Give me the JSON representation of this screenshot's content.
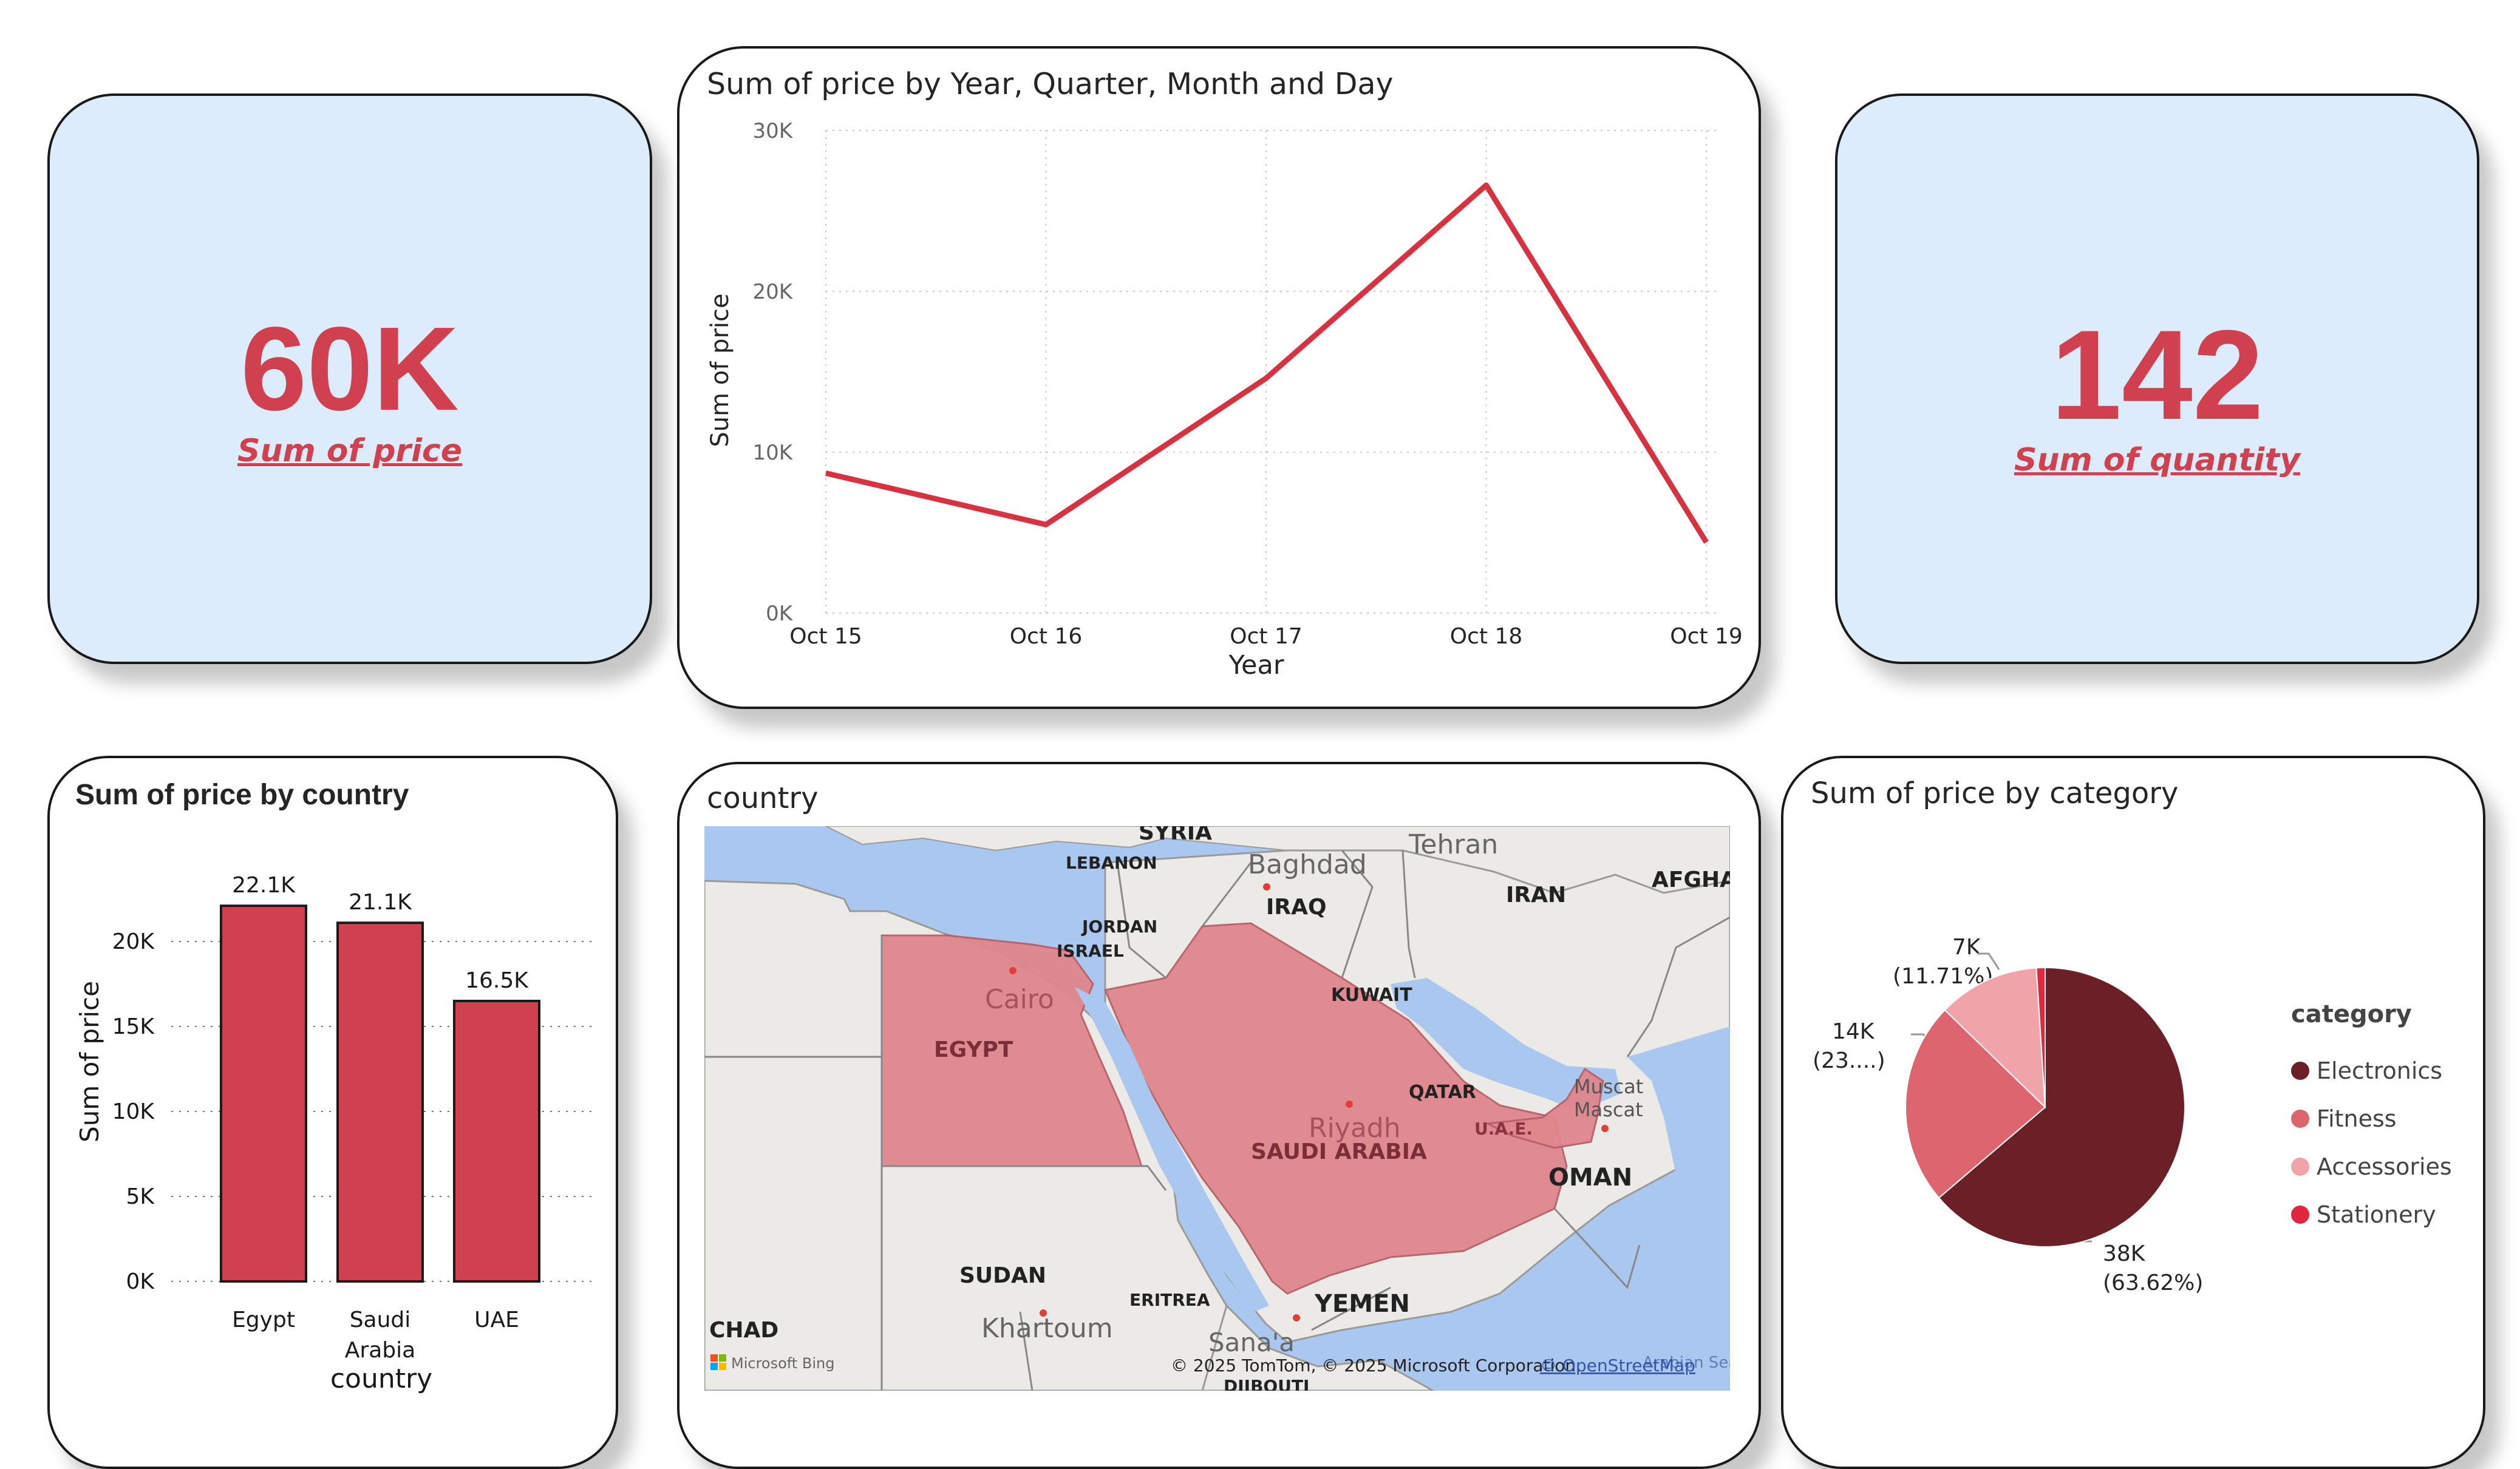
{
  "kpis": {
    "price": {
      "value": "60K",
      "label": "Sum of price"
    },
    "quantity": {
      "value": "142",
      "label": "Sum of quantity"
    }
  },
  "line_chart": {
    "title": "Sum of price by Year, Quarter, Month and Day",
    "xlabel": "Year",
    "ylabel": "Sum of price",
    "x_ticks": [
      "Oct 15",
      "Oct 16",
      "Oct 17",
      "Oct 18",
      "Oct 19"
    ],
    "y_ticks": [
      "0K",
      "10K",
      "20K",
      "30K"
    ]
  },
  "bar_chart": {
    "title": "Sum of price by country",
    "xlabel": "country",
    "ylabel": "Sum of price",
    "y_ticks": [
      "0K",
      "5K",
      "10K",
      "15K",
      "20K"
    ],
    "bars": [
      {
        "label_lines": [
          "Egypt"
        ],
        "data_label": "22.1K"
      },
      {
        "label_lines": [
          "Saudi",
          "Arabia"
        ],
        "data_label": "21.1K"
      },
      {
        "label_lines": [
          "UAE"
        ],
        "data_label": "16.5K"
      }
    ]
  },
  "map": {
    "title": "country",
    "credit": "© 2025 TomTom, © 2025 Microsoft Corporation,",
    "credit_link": "© OpenStreetMap",
    "bing_logo": "Microsoft Bing",
    "country_labels": [
      "SYRIA",
      "LEBANON",
      "JORDAN",
      "ISRAEL",
      "IRAQ",
      "IRAN",
      "AFGHA",
      "KUWAIT",
      "QATAR",
      "U.A.E.",
      "OMAN",
      "EGYPT",
      "SAUDI ARABIA",
      "SUDAN",
      "ERITREA",
      "YEMEN",
      "CHAD",
      "DJIBOUTI"
    ],
    "city_labels": [
      "Baghdad",
      "Tehran",
      "Cairo",
      "Riyadh",
      "Muscat",
      "Mascat",
      "Khartoum",
      "Sana'a",
      "Arabian Sea"
    ],
    "colors": {
      "water": "#aac8ef",
      "land": "#eceae6",
      "highlight": "#e0868d"
    }
  },
  "pie_chart": {
    "title": "Sum of price by category",
    "legend_title": "category",
    "legend": [
      "Electronics",
      "Fitness",
      "Accessories",
      "Stationery"
    ],
    "slice_labels": [
      {
        "value": "38K",
        "percent": "(63.62%)"
      },
      {
        "value": "14K",
        "percent": "(23....)"
      },
      {
        "value": "7K",
        "percent": "(11.71%)"
      }
    ]
  },
  "colors": {
    "accent": "#d1404f",
    "line": "#d8313f",
    "bar": "#d1404f",
    "kpi_background": "#dcecfb",
    "pie": [
      "#6b1f27",
      "#dc6570",
      "#f1a3aa",
      "#e0273d"
    ]
  },
  "chart_data": [
    {
      "type": "line",
      "title": "Sum of price by Year, Quarter, Month and Day",
      "xlabel": "Year",
      "ylabel": "Sum of price",
      "x": [
        "Oct 15",
        "Oct 16",
        "Oct 17",
        "Oct 18",
        "Oct 19"
      ],
      "series": [
        {
          "values": [
            8700,
            5500,
            14600,
            26600,
            4400
          ]
        }
      ],
      "ylim": [
        0,
        30000
      ],
      "grid": true
    },
    {
      "type": "bar",
      "title": "Sum of price by country",
      "xlabel": "country",
      "ylabel": "Sum of price",
      "categories": [
        "Egypt",
        "Saudi Arabia",
        "UAE"
      ],
      "values": [
        22100,
        21100,
        16500
      ],
      "ylim": [
        0,
        22000
      ],
      "grid": true
    },
    {
      "type": "pie",
      "title": "Sum of price by category",
      "legend_title": "category",
      "legend_position": "right",
      "categories": [
        "Electronics",
        "Fitness",
        "Accessories",
        "Stationery"
      ],
      "values": [
        38000,
        14000,
        7000,
        600
      ]
    }
  ]
}
